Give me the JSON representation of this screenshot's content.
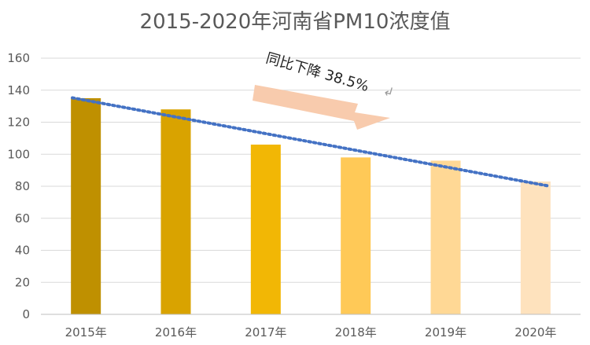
{
  "chart_data": {
    "type": "bar",
    "title": "2015-2020年河南省PM10浓度值",
    "categories": [
      "2015年",
      "2016年",
      "2017年",
      "2018年",
      "2019年",
      "2020年"
    ],
    "values": [
      135,
      128,
      106,
      98,
      96,
      83
    ],
    "ylim": [
      0,
      160
    ],
    "yticks": [
      0,
      20,
      40,
      60,
      80,
      100,
      120,
      140,
      160
    ],
    "grid": true,
    "legend": "none",
    "trendline": {
      "style": "dotted",
      "color": "#4472C4"
    },
    "bar_colors": [
      "#BF9000",
      "#D9A300",
      "#F2B705",
      "#FFC957",
      "#FFD895",
      "#FEE2BD"
    ],
    "annotation": {
      "text": "同比下降 38.5%",
      "arrow_color": "#F8CBAD"
    }
  }
}
